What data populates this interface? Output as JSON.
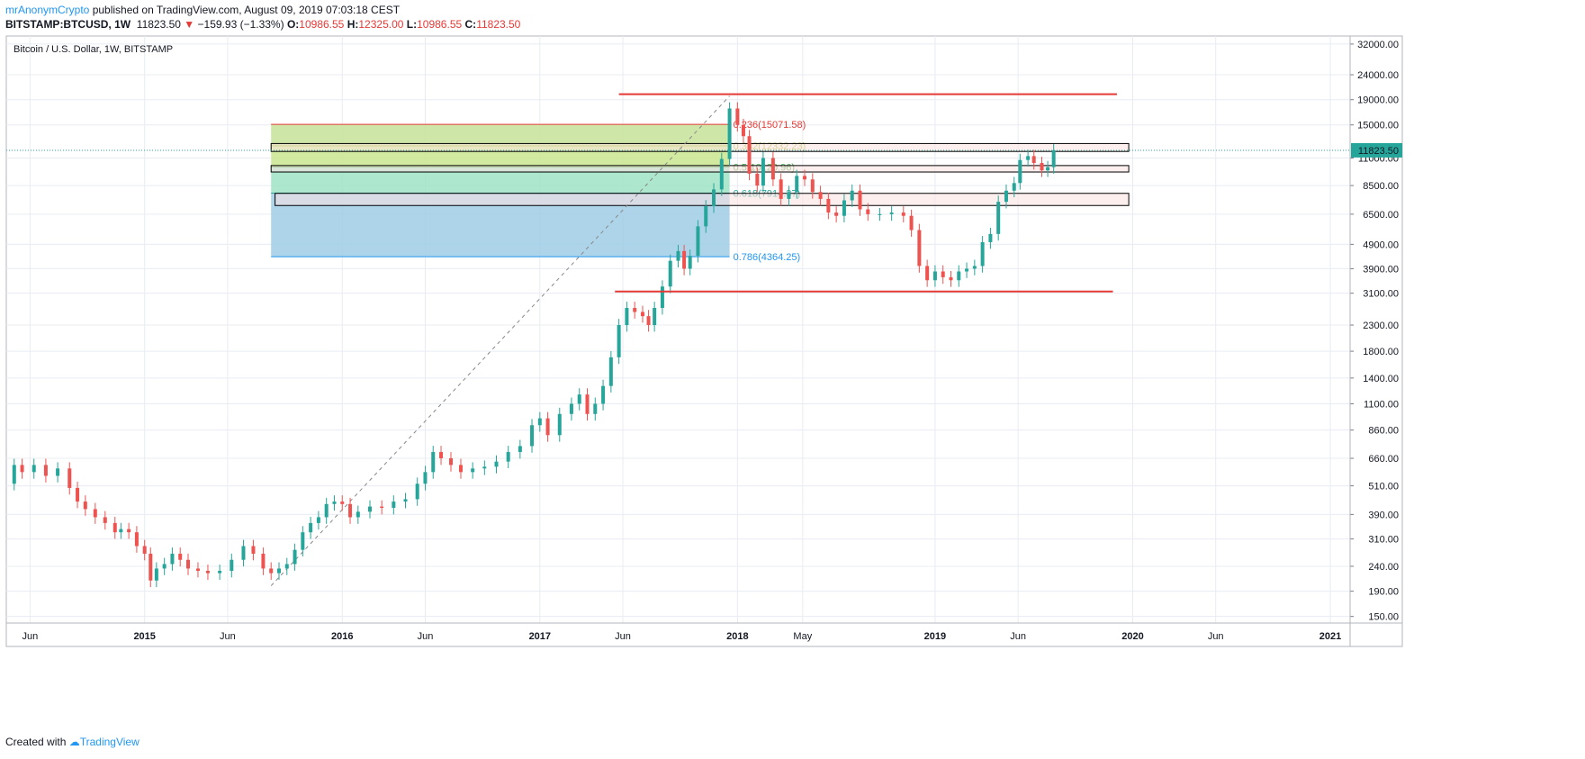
{
  "header": {
    "author": "mrAnonymCrypto",
    "published": "published on TradingView.com, August 09, 2019 07:03:18 CEST",
    "symbol": "BITSTAMP:BTCUSD, 1W",
    "last": "11823.50",
    "change": "−159.93 (−1.33%)",
    "o_label": "O:",
    "o_value": "10986.55",
    "h_label": "H:",
    "h_value": "12325.00",
    "l_label": "L:",
    "l_value": "10986.55",
    "c_label": "C:",
    "c_value": "11823.50"
  },
  "footer": {
    "created_with": "Created with",
    "brand": "TradingView"
  },
  "colors": {
    "up": "#26a69a",
    "down": "#ef5350",
    "grid": "#e8ecf2",
    "resistance": "#e53935",
    "price_tag": "#26a69a",
    "fib_236": "#e53935",
    "fib_382": "#a3c43a",
    "fib_5": "#4caf50",
    "fib_618": "#26a69a",
    "fib_786": "#2196f3",
    "zone_green": "#c5e39a",
    "zone_teal": "#9fe3c4",
    "zone_blue": "#9fcde5"
  },
  "chart_data": {
    "type": "candlestick",
    "title": "Bitcoin / U.S. Dollar, 1W, BITSTAMP",
    "scale": "log",
    "y_ticks": [
      150,
      190,
      240,
      310,
      390,
      510,
      660,
      860,
      1100,
      1400,
      1800,
      2300,
      3100,
      3900,
      4900,
      6500,
      8500,
      11000,
      15000,
      19000,
      24000,
      32000
    ],
    "y_tick_labels": [
      "150.00",
      "190.00",
      "240.00",
      "310.00",
      "390.00",
      "510.00",
      "660.00",
      "860.00",
      "1100.00",
      "1400.00",
      "1800.00",
      "2300.00",
      "3100.00",
      "3900.00",
      "4900.00",
      "6500.00",
      "8500.00",
      "11000.00",
      "15000.00",
      "19000.00",
      "24000.00",
      "32000.00"
    ],
    "x_ticks": [
      "Jun",
      "2015",
      "Jun",
      "2016",
      "Jun",
      "2017",
      "Jun",
      "2018",
      "May",
      "2019",
      "Jun",
      "2020",
      "Jun",
      "2021"
    ],
    "x_tick_dates": [
      2014.42,
      2015.0,
      2015.42,
      2016.0,
      2016.42,
      2017.0,
      2017.42,
      2018.0,
      2018.33,
      2019.0,
      2019.42,
      2020.0,
      2020.42,
      2021.0
    ],
    "x_range": [
      2014.3,
      2021.1
    ],
    "y_range": [
      141,
      34500
    ],
    "last_price": 11823.5,
    "last_price_label": "11823.50",
    "price_series": [
      [
        2014.3,
        520
      ],
      [
        2014.34,
        620
      ],
      [
        2014.38,
        580
      ],
      [
        2014.44,
        620
      ],
      [
        2014.5,
        560
      ],
      [
        2014.56,
        600
      ],
      [
        2014.62,
        500
      ],
      [
        2014.66,
        440
      ],
      [
        2014.7,
        410
      ],
      [
        2014.75,
        380
      ],
      [
        2014.8,
        360
      ],
      [
        2014.85,
        330
      ],
      [
        2014.88,
        340
      ],
      [
        2014.92,
        330
      ],
      [
        2014.96,
        290
      ],
      [
        2015.0,
        270
      ],
      [
        2015.03,
        210
      ],
      [
        2015.06,
        235
      ],
      [
        2015.1,
        245
      ],
      [
        2015.14,
        270
      ],
      [
        2015.18,
        255
      ],
      [
        2015.22,
        235
      ],
      [
        2015.27,
        230
      ],
      [
        2015.32,
        225
      ],
      [
        2015.38,
        230
      ],
      [
        2015.44,
        255
      ],
      [
        2015.5,
        290
      ],
      [
        2015.55,
        270
      ],
      [
        2015.6,
        235
      ],
      [
        2015.64,
        225
      ],
      [
        2015.68,
        235
      ],
      [
        2015.72,
        245
      ],
      [
        2015.76,
        280
      ],
      [
        2015.8,
        330
      ],
      [
        2015.84,
        360
      ],
      [
        2015.88,
        380
      ],
      [
        2015.92,
        430
      ],
      [
        2015.96,
        440
      ],
      [
        2016.0,
        430
      ],
      [
        2016.04,
        380
      ],
      [
        2016.08,
        400
      ],
      [
        2016.14,
        420
      ],
      [
        2016.2,
        415
      ],
      [
        2016.26,
        440
      ],
      [
        2016.32,
        450
      ],
      [
        2016.38,
        520
      ],
      [
        2016.42,
        580
      ],
      [
        2016.46,
        700
      ],
      [
        2016.5,
        660
      ],
      [
        2016.55,
        620
      ],
      [
        2016.6,
        580
      ],
      [
        2016.66,
        600
      ],
      [
        2016.72,
        610
      ],
      [
        2016.78,
        640
      ],
      [
        2016.84,
        700
      ],
      [
        2016.9,
        740
      ],
      [
        2016.96,
        900
      ],
      [
        2017.0,
        960
      ],
      [
        2017.04,
        820
      ],
      [
        2017.1,
        1000
      ],
      [
        2017.16,
        1100
      ],
      [
        2017.2,
        1200
      ],
      [
        2017.24,
        1000
      ],
      [
        2017.28,
        1100
      ],
      [
        2017.32,
        1300
      ],
      [
        2017.36,
        1700
      ],
      [
        2017.4,
        2300
      ],
      [
        2017.44,
        2700
      ],
      [
        2017.48,
        2600
      ],
      [
        2017.52,
        2500
      ],
      [
        2017.55,
        2300
      ],
      [
        2017.58,
        2700
      ],
      [
        2017.62,
        3300
      ],
      [
        2017.66,
        4200
      ],
      [
        2017.7,
        4600
      ],
      [
        2017.73,
        3900
      ],
      [
        2017.76,
        4400
      ],
      [
        2017.8,
        5800
      ],
      [
        2017.84,
        7000
      ],
      [
        2017.88,
        8200
      ],
      [
        2017.92,
        10900
      ],
      [
        2017.96,
        17500
      ],
      [
        2018.0,
        15000
      ],
      [
        2018.03,
        13500
      ],
      [
        2018.06,
        9500
      ],
      [
        2018.1,
        8500
      ],
      [
        2018.13,
        11000
      ],
      [
        2018.18,
        9000
      ],
      [
        2018.22,
        7500
      ],
      [
        2018.26,
        8000
      ],
      [
        2018.3,
        9300
      ],
      [
        2018.34,
        9000
      ],
      [
        2018.38,
        8000
      ],
      [
        2018.42,
        7500
      ],
      [
        2018.46,
        6600
      ],
      [
        2018.5,
        6400
      ],
      [
        2018.54,
        7400
      ],
      [
        2018.58,
        8100
      ],
      [
        2018.62,
        6800
      ],
      [
        2018.66,
        6500
      ],
      [
        2018.72,
        6500
      ],
      [
        2018.78,
        6600
      ],
      [
        2018.84,
        6400
      ],
      [
        2018.88,
        5600
      ],
      [
        2018.92,
        4000
      ],
      [
        2018.96,
        3500
      ],
      [
        2019.0,
        3800
      ],
      [
        2019.04,
        3600
      ],
      [
        2019.08,
        3500
      ],
      [
        2019.12,
        3800
      ],
      [
        2019.16,
        3900
      ],
      [
        2019.2,
        4000
      ],
      [
        2019.24,
        5000
      ],
      [
        2019.28,
        5400
      ],
      [
        2019.32,
        7300
      ],
      [
        2019.36,
        8100
      ],
      [
        2019.4,
        8700
      ],
      [
        2019.43,
        10800
      ],
      [
        2019.47,
        11200
      ],
      [
        2019.5,
        10500
      ],
      [
        2019.54,
        9800
      ],
      [
        2019.57,
        10100
      ],
      [
        2019.6,
        11823
      ]
    ],
    "resistance_lines": [
      {
        "label": "top",
        "value": 20000,
        "from": 2017.4,
        "to": 2019.92
      },
      {
        "label": "bottom",
        "value": 3150,
        "from": 2017.38,
        "to": 2019.9
      }
    ],
    "fib_levels": [
      {
        "ratio": "0.236",
        "label": "0.236(15071.58)",
        "price": 15071.58
      },
      {
        "ratio": "0.382",
        "label": "0.382(12332.23)",
        "price": 12332.23
      },
      {
        "ratio": "0.5",
        "label": "0.5(10120.96)",
        "price": 10120.96
      },
      {
        "ratio": "0.618",
        "label": "0.618(7914.37)",
        "price": 7914.37
      },
      {
        "ratio": "0.786",
        "label": "0.786(4364.25)",
        "price": 4364.25
      }
    ],
    "fib_span": {
      "from": 2015.64,
      "to": 2017.96
    },
    "trend_line": {
      "from_date": 2015.64,
      "from_price": 200,
      "to_date": 2017.96,
      "to_price": 19666
    },
    "zones": [
      {
        "top": 12600,
        "bottom": 11700,
        "from": 2015.64,
        "to": 2019.98
      },
      {
        "top": 10250,
        "bottom": 9650,
        "from": 2015.64,
        "to": 2019.98
      },
      {
        "top": 7900,
        "bottom": 7050,
        "from": 2015.66,
        "to": 2019.98
      }
    ]
  }
}
